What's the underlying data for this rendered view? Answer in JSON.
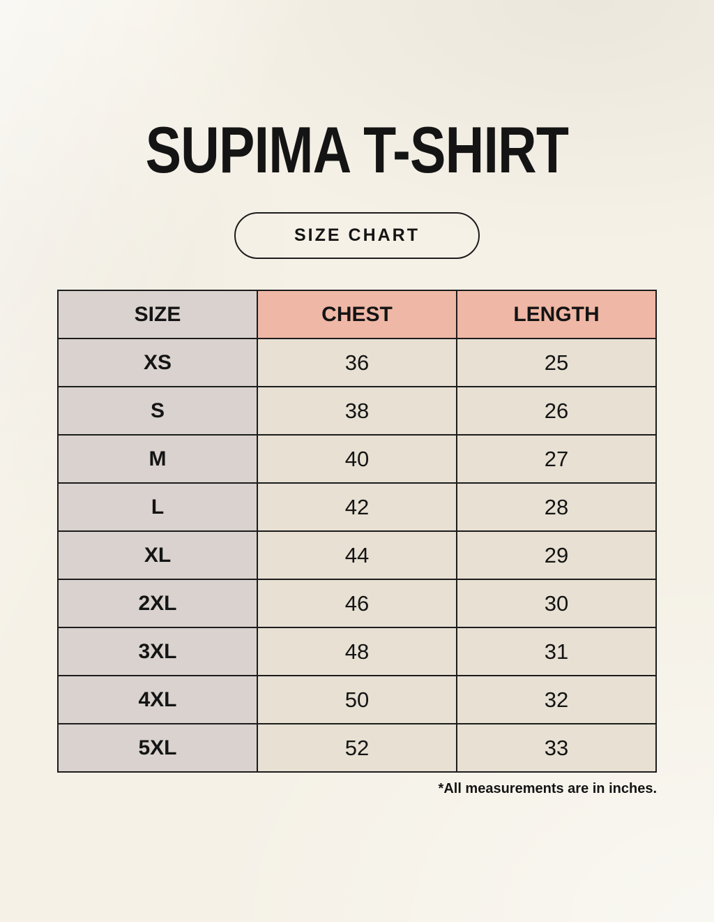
{
  "page": {
    "title": "SUPIMA T-SHIRT",
    "badge": "SIZE CHART",
    "footnote": "*All measurements are in inches."
  },
  "chart_data": {
    "type": "table",
    "title": "SUPIMA T-SHIRT",
    "subtitle": "SIZE CHART",
    "columns": [
      "SIZE",
      "CHEST",
      "LENGTH"
    ],
    "rows": [
      [
        "XS",
        36,
        25
      ],
      [
        "S",
        38,
        26
      ],
      [
        "M",
        40,
        27
      ],
      [
        "L",
        42,
        28
      ],
      [
        "XL",
        44,
        29
      ],
      [
        "2XL",
        46,
        30
      ],
      [
        "3XL",
        48,
        31
      ],
      [
        "4XL",
        50,
        32
      ],
      [
        "5XL",
        52,
        33
      ]
    ],
    "footnote": "*All measurements are in inches.",
    "units": "inches"
  },
  "colors": {
    "background": "#f5f1e7",
    "header_accent": "#efb7a5",
    "size_col": "#d9d2cf",
    "cell": "#e7e0d3",
    "border": "#1c1c1c",
    "text": "#141414"
  }
}
